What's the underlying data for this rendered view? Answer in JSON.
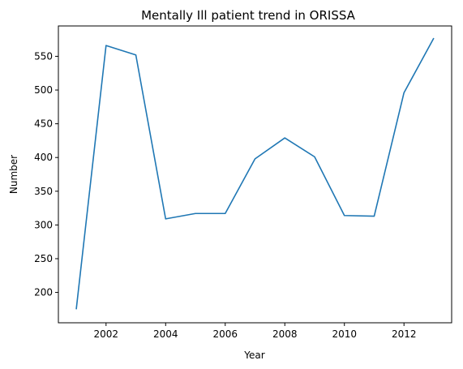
{
  "chart_data": {
    "type": "line",
    "title": "Mentally Ill patient trend in ORISSA",
    "xlabel": "Year",
    "ylabel": "Number",
    "xlim": [
      2000.4,
      2013.6
    ],
    "ylim": [
      155,
      595
    ],
    "xticks": [
      2002,
      2004,
      2006,
      2008,
      2010,
      2012
    ],
    "yticks": [
      200,
      250,
      300,
      350,
      400,
      450,
      500,
      550
    ],
    "grid": false,
    "line_color": "#1f77b4",
    "series": [
      {
        "x": [
          2001,
          2002,
          2003,
          2004,
          2005,
          2006,
          2007,
          2008,
          2009,
          2010,
          2011,
          2012,
          2013
        ],
        "values": [
          175,
          566,
          552,
          309,
          317,
          317,
          398,
          429,
          401,
          314,
          313,
          496,
          577
        ]
      }
    ]
  }
}
